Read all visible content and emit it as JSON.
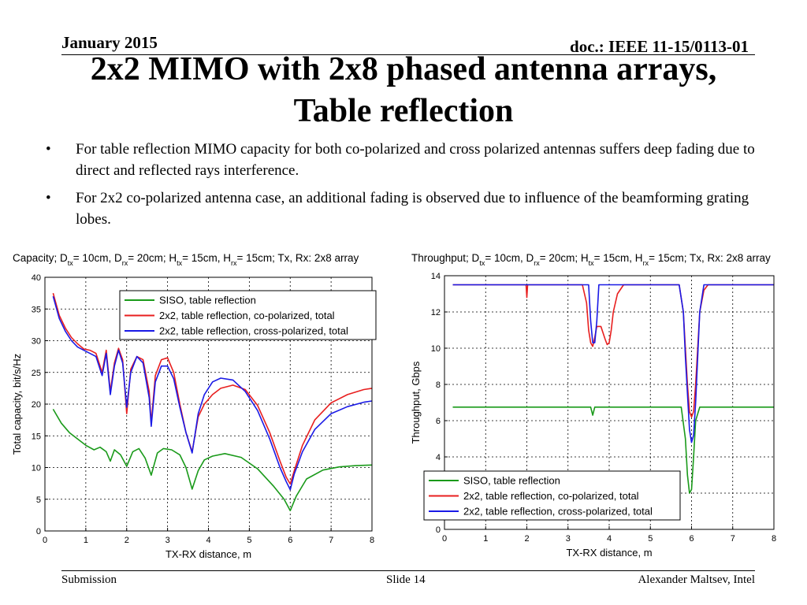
{
  "header": {
    "date": "January 2015",
    "doc_id": "doc.: IEEE 11-15/0113-01"
  },
  "title": {
    "line1": "2x2 MIMO with 2x8 phased antenna arrays,",
    "line2": "Table reflection"
  },
  "bullets": [
    "For table reflection MIMO capacity for both co-polarized and cross polarized antennas suffers deep fading due to direct and reflected rays interference.",
    "For 2x2 co-polarized antenna case, an additional fading is observed due to influence of the beamforming grating lobes."
  ],
  "footer": {
    "left": "Submission",
    "center": "Slide 14",
    "right": "Alexander Maltsev, Intel"
  },
  "colors": {
    "green": "#1a9a1a",
    "red": "#e81f1f",
    "blue": "#1a1ae6"
  },
  "chart_data": [
    {
      "type": "line",
      "title_parts": [
        "Capacity; D",
        "tx",
        "= 10cm, D",
        "rx",
        "= 20cm; H",
        "tx",
        "= 15cm, H",
        "rx",
        "= 15cm; Tx, Rx: 2x8 array"
      ],
      "xlabel": "TX-RX distance, m",
      "ylabel": "Total capacity, bit/s/Hz",
      "xlim": [
        0,
        8
      ],
      "ylim": [
        0,
        40
      ],
      "xticks": [
        "0",
        "1",
        "2",
        "3",
        "4",
        "5",
        "6",
        "7",
        "8"
      ],
      "yticks": [
        "0",
        "5",
        "10",
        "15",
        "20",
        "25",
        "30",
        "35",
        "40"
      ],
      "grid": true,
      "legend_position": "top-right",
      "series": [
        {
          "name": "SISO, table reflection",
          "color": "green",
          "x": [
            0.2,
            0.4,
            0.6,
            0.8,
            1.0,
            1.2,
            1.35,
            1.5,
            1.6,
            1.7,
            1.85,
            2.0,
            2.15,
            2.3,
            2.45,
            2.6,
            2.75,
            2.9,
            3.1,
            3.3,
            3.45,
            3.6,
            3.75,
            3.9,
            4.1,
            4.4,
            4.8,
            5.2,
            5.6,
            5.85,
            6.0,
            6.15,
            6.4,
            6.8,
            7.2,
            7.6,
            8.0
          ],
          "y": [
            19.2,
            17.0,
            15.5,
            14.5,
            13.5,
            12.8,
            13.2,
            12.5,
            11.0,
            12.8,
            12.0,
            10.2,
            12.5,
            13.0,
            11.5,
            8.8,
            12.3,
            13.0,
            12.8,
            12.0,
            10.0,
            6.6,
            9.5,
            11.2,
            11.8,
            12.2,
            11.6,
            9.8,
            7.0,
            5.0,
            3.2,
            5.5,
            8.2,
            9.6,
            10.1,
            10.3,
            10.4
          ]
        },
        {
          "name": "2x2, table reflection, co-polarized, total",
          "color": "red",
          "x": [
            0.2,
            0.35,
            0.5,
            0.65,
            0.8,
            0.95,
            1.1,
            1.25,
            1.4,
            1.5,
            1.6,
            1.7,
            1.8,
            1.9,
            2.0,
            2.1,
            2.25,
            2.4,
            2.55,
            2.6,
            2.7,
            2.85,
            3.0,
            3.15,
            3.3,
            3.45,
            3.6,
            3.75,
            3.9,
            4.1,
            4.3,
            4.6,
            4.9,
            5.2,
            5.5,
            5.75,
            5.9,
            6.0,
            6.1,
            6.3,
            6.6,
            7.0,
            7.4,
            7.8,
            8.0
          ],
          "y": [
            37.5,
            34.0,
            32.0,
            30.5,
            29.5,
            28.7,
            28.5,
            28.0,
            25.0,
            28.5,
            22.0,
            26.5,
            28.8,
            27.0,
            18.5,
            25.5,
            27.5,
            27.0,
            22.0,
            17.0,
            24.5,
            27.0,
            27.3,
            25.0,
            20.0,
            15.5,
            12.5,
            18.0,
            20.0,
            21.5,
            22.5,
            23.0,
            22.3,
            19.8,
            15.5,
            11.0,
            8.5,
            7.4,
            9.5,
            13.5,
            17.5,
            20.2,
            21.5,
            22.3,
            22.5
          ]
        },
        {
          "name": "2x2, table reflection, cross-polarized, total",
          "color": "blue",
          "x": [
            0.2,
            0.35,
            0.5,
            0.65,
            0.8,
            0.95,
            1.1,
            1.25,
            1.4,
            1.5,
            1.6,
            1.7,
            1.8,
            1.9,
            2.0,
            2.1,
            2.25,
            2.4,
            2.55,
            2.6,
            2.7,
            2.85,
            3.0,
            3.15,
            3.3,
            3.45,
            3.6,
            3.75,
            3.9,
            4.1,
            4.3,
            4.6,
            4.9,
            5.2,
            5.5,
            5.75,
            5.9,
            6.0,
            6.1,
            6.3,
            6.6,
            7.0,
            7.4,
            7.8,
            8.0
          ],
          "y": [
            37.0,
            33.5,
            31.5,
            30.0,
            29.0,
            28.5,
            28.0,
            27.5,
            24.5,
            28.0,
            21.5,
            26.0,
            28.5,
            26.5,
            19.5,
            25.0,
            27.5,
            26.5,
            21.0,
            16.5,
            23.5,
            26.0,
            26.0,
            24.0,
            19.5,
            15.5,
            12.3,
            18.5,
            21.5,
            23.5,
            24.1,
            23.8,
            22.0,
            19.0,
            14.5,
            10.0,
            7.8,
            6.5,
            9.0,
            12.5,
            16.0,
            18.5,
            19.6,
            20.3,
            20.5
          ]
        }
      ]
    },
    {
      "type": "line",
      "title_parts": [
        "Throughput; D",
        "tx",
        "= 10cm, D",
        "rx",
        "= 20cm; H",
        "tx",
        "= 15cm, H",
        "rx",
        "= 15cm; Tx, Rx: 2x8 array"
      ],
      "xlabel": "TX-RX distance, m",
      "ylabel": "Throughput, Gbps",
      "xlim": [
        0,
        8
      ],
      "ylim": [
        0,
        14
      ],
      "xticks": [
        "0",
        "1",
        "2",
        "3",
        "4",
        "5",
        "6",
        "7",
        "8"
      ],
      "yticks": [
        "0",
        "2",
        "4",
        "6",
        "8",
        "10",
        "12",
        "14"
      ],
      "grid": true,
      "legend_position": "bottom-right",
      "series": [
        {
          "name": "SISO, table reflection",
          "color": "green",
          "x": [
            0.2,
            3.55,
            3.6,
            3.65,
            5.75,
            5.85,
            5.9,
            5.95,
            6.0,
            6.05,
            6.1,
            6.2,
            6.3,
            8.0
          ],
          "y": [
            6.75,
            6.75,
            6.3,
            6.75,
            6.75,
            5.0,
            3.0,
            2.0,
            2.2,
            4.0,
            6.0,
            6.75,
            6.75,
            6.75
          ]
        },
        {
          "name": "2x2, table reflection, co-polarized, total",
          "color": "red",
          "x": [
            0.2,
            1.98,
            2.0,
            2.02,
            3.35,
            3.45,
            3.5,
            3.55,
            3.6,
            3.65,
            3.7,
            3.8,
            3.9,
            3.95,
            4.0,
            4.05,
            4.1,
            4.2,
            4.35,
            5.7,
            5.8,
            5.85,
            5.9,
            5.95,
            6.0,
            6.05,
            6.1,
            6.15,
            6.2,
            6.3,
            6.4,
            8.0
          ],
          "y": [
            13.5,
            13.5,
            12.8,
            13.5,
            13.5,
            12.5,
            11.0,
            10.3,
            10.1,
            10.6,
            11.2,
            11.2,
            10.5,
            10.2,
            10.3,
            11.0,
            12.0,
            13.0,
            13.5,
            13.5,
            12.0,
            10.0,
            8.0,
            6.5,
            6.2,
            6.5,
            8.0,
            10.0,
            12.0,
            13.2,
            13.5,
            13.5
          ]
        },
        {
          "name": "2x2, table reflection, cross-polarized, total",
          "color": "blue",
          "x": [
            0.2,
            3.5,
            3.55,
            3.6,
            3.65,
            3.7,
            3.75,
            5.7,
            5.8,
            5.85,
            5.9,
            5.95,
            6.0,
            6.05,
            6.1,
            6.15,
            6.2,
            6.3,
            8.0
          ],
          "y": [
            13.5,
            13.5,
            11.5,
            10.3,
            10.3,
            11.5,
            13.5,
            13.5,
            12.0,
            9.5,
            7.5,
            5.5,
            4.8,
            5.2,
            7.0,
            9.5,
            12.0,
            13.5,
            13.5
          ]
        }
      ]
    }
  ]
}
